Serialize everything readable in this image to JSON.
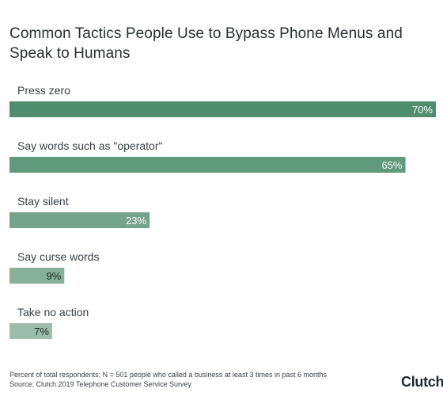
{
  "title": "Common Tactics People Use to Bypass Phone Menus and Speak to Humans",
  "chart_data": {
    "type": "bar",
    "orientation": "horizontal",
    "categories": [
      "Press zero",
      "Say words such as \"operator\"",
      "Stay silent",
      "Say curse words",
      "Take no action"
    ],
    "values": [
      70,
      65,
      23,
      9,
      7
    ],
    "value_labels": [
      "70%",
      "65%",
      "23%",
      "9%",
      "7%"
    ],
    "unit": "%",
    "xlim": [
      0,
      70
    ],
    "grid": false,
    "legend": "none",
    "bar_colors": [
      "#4e8e6e",
      "#5f9a7c",
      "#74a58c",
      "#86b09b",
      "#9cbdad"
    ],
    "label_colors": [
      "#ffffff",
      "#ffffff",
      "#ffffff",
      "#1e2a25",
      "#1e2a25"
    ]
  },
  "footnote": {
    "line1": "Percent of total respondents; N = 501 people who called a business at least 3 times in past 6 months",
    "line2": "Source: Clutch 2019 Telephone Customer Service Survey"
  },
  "logo": "Clutch"
}
